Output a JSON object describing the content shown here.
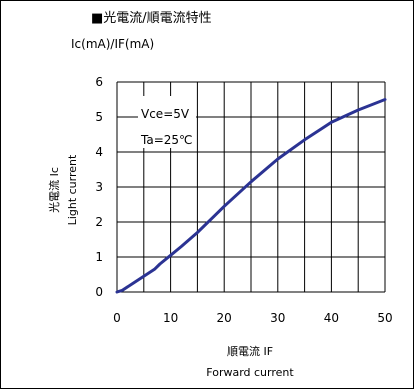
{
  "chart_data": {
    "type": "line",
    "title": "■光電流/順電流特性",
    "unit_label": "Ic(mA)/IF(mA)",
    "xlabel": "順電流 IF",
    "xlabel_en": "Forward current",
    "ylabel": "光電流 Ic",
    "ylabel_en": "Light current",
    "xlim": [
      0,
      50
    ],
    "ylim": [
      0,
      6
    ],
    "xticks": [
      0,
      10,
      20,
      30,
      40,
      50
    ],
    "yticks": [
      0,
      1,
      2,
      3,
      4,
      5,
      6
    ],
    "grid": true,
    "annotations": [
      "Vce=5V",
      "Ta=25℃"
    ],
    "series_color": "#2b3393",
    "series": [
      {
        "x": [
          0,
          1,
          2,
          3,
          5,
          7,
          8,
          10,
          12,
          15,
          18,
          20,
          25,
          30,
          35,
          40,
          45,
          50
        ],
        "y": [
          0,
          0.05,
          0.15,
          0.25,
          0.45,
          0.65,
          0.8,
          1.05,
          1.3,
          1.7,
          2.15,
          2.45,
          3.15,
          3.8,
          4.35,
          4.85,
          5.2,
          5.5
        ]
      }
    ]
  }
}
